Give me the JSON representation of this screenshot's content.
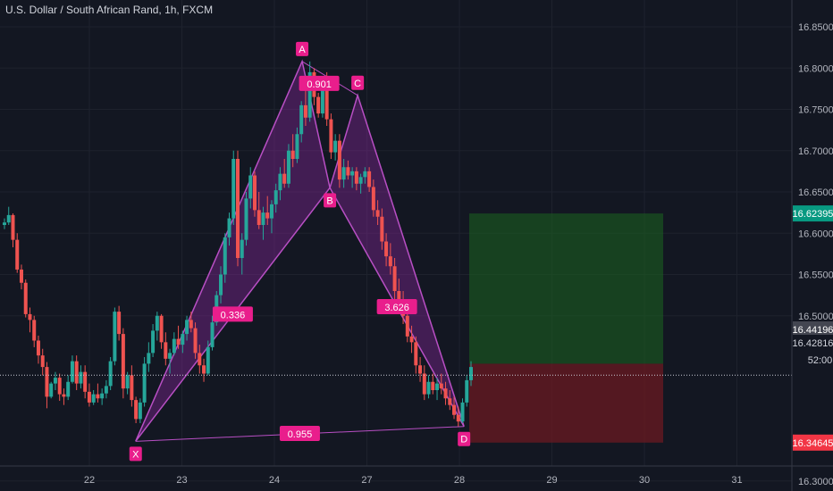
{
  "header": {
    "title": "U.S. Dollar / South African Rand, 1h, FXCM"
  },
  "chart_data": {
    "type": "candlestick",
    "symbol": "USDZAR",
    "interval": "1h",
    "source": "FXCM",
    "ylim": [
      16.26,
      16.87
    ],
    "y_ticks": [
      "16.85000",
      "16.80000",
      "16.75000",
      "16.70000",
      "16.65000",
      "16.60000",
      "16.55000",
      "16.50000",
      "16.30000"
    ],
    "x_ticks": [
      "22",
      "23",
      "24",
      "27",
      "28",
      "29",
      "30",
      "31"
    ],
    "price_labels": {
      "take_profit": "16.62395",
      "upper_current": "16.44196",
      "last_price": "16.42816",
      "countdown": "52:00",
      "stop_loss": "16.34645"
    },
    "colors": {
      "up": "#26a69a",
      "down": "#ef5350",
      "pattern_fill": "#9c27b0",
      "pattern_label": "#e91e8c",
      "profit_zone": "#1b5e20",
      "loss_zone": "#6b1a22",
      "take_profit_tag": "#089981",
      "stop_loss_tag": "#f23645"
    },
    "harmonic_pattern": {
      "points": [
        {
          "label": "X",
          "x": "22.5",
          "price": 16.348
        },
        {
          "label": "A",
          "x": "24.3",
          "price": 16.808
        },
        {
          "label": "B",
          "x": "24.6",
          "price": 16.655
        },
        {
          "label": "C",
          "x": "24.9",
          "price": 16.767
        },
        {
          "label": "D",
          "x": "28.05",
          "price": 16.366
        }
      ],
      "ratios": [
        "0.336",
        "0.901",
        "3.626",
        "0.955"
      ]
    },
    "candles": [
      [
        16.61,
        16.618,
        16.605,
        16.613
      ],
      [
        16.613,
        16.632,
        16.61,
        16.622
      ],
      [
        16.622,
        16.624,
        16.583,
        16.592
      ],
      [
        16.592,
        16.6,
        16.552,
        16.556
      ],
      [
        16.556,
        16.562,
        16.532,
        16.54
      ],
      [
        16.54,
        16.544,
        16.498,
        16.502
      ],
      [
        16.502,
        16.51,
        16.48,
        16.495
      ],
      [
        16.495,
        16.5,
        16.462,
        16.47
      ],
      [
        16.47,
        16.476,
        16.442,
        16.452
      ],
      [
        16.452,
        16.46,
        16.428,
        16.438
      ],
      [
        16.438,
        16.444,
        16.388,
        16.402
      ],
      [
        16.402,
        16.42,
        16.4,
        16.418
      ],
      [
        16.418,
        16.432,
        16.41,
        16.425
      ],
      [
        16.425,
        16.43,
        16.397,
        16.405
      ],
      [
        16.405,
        16.412,
        16.392,
        16.402
      ],
      [
        16.402,
        16.428,
        16.398,
        16.42
      ],
      [
        16.42,
        16.452,
        16.418,
        16.445
      ],
      [
        16.445,
        16.452,
        16.41,
        16.418
      ],
      [
        16.418,
        16.44,
        16.412,
        16.432
      ],
      [
        16.432,
        16.44,
        16.4,
        16.408
      ],
      [
        16.408,
        16.418,
        16.39,
        16.395
      ],
      [
        16.395,
        16.41,
        16.392,
        16.405
      ],
      [
        16.405,
        16.418,
        16.395,
        16.4
      ],
      [
        16.4,
        16.412,
        16.392,
        16.406
      ],
      [
        16.406,
        16.422,
        16.4,
        16.415
      ],
      [
        16.415,
        16.45,
        16.41,
        16.445
      ],
      [
        16.445,
        16.51,
        16.44,
        16.505
      ],
      [
        16.505,
        16.512,
        16.47,
        16.478
      ],
      [
        16.478,
        16.485,
        16.4,
        16.412
      ],
      [
        16.412,
        16.432,
        16.405,
        16.428
      ],
      [
        16.428,
        16.44,
        16.39,
        16.398
      ],
      [
        16.398,
        16.402,
        16.37,
        16.375
      ],
      [
        16.375,
        16.4,
        16.37,
        16.395
      ],
      [
        16.395,
        16.45,
        16.39,
        16.442
      ],
      [
        16.442,
        16.468,
        16.432,
        16.455
      ],
      [
        16.455,
        16.49,
        16.45,
        16.482
      ],
      [
        16.482,
        16.505,
        16.47,
        16.5
      ],
      [
        16.5,
        16.502,
        16.46,
        16.468
      ],
      [
        16.468,
        16.48,
        16.44,
        16.448
      ],
      [
        16.448,
        16.46,
        16.43,
        16.455
      ],
      [
        16.455,
        16.48,
        16.452,
        16.472
      ],
      [
        16.472,
        16.488,
        16.46,
        16.465
      ],
      [
        16.465,
        16.482,
        16.455,
        16.478
      ],
      [
        16.478,
        16.5,
        16.47,
        16.495
      ],
      [
        16.495,
        16.505,
        16.48,
        16.485
      ],
      [
        16.485,
        16.492,
        16.448,
        16.455
      ],
      [
        16.455,
        16.465,
        16.43,
        16.44
      ],
      [
        16.44,
        16.448,
        16.42,
        16.43
      ],
      [
        16.43,
        16.47,
        16.428,
        16.462
      ],
      [
        16.462,
        16.5,
        16.458,
        16.492
      ],
      [
        16.492,
        16.53,
        16.488,
        16.525
      ],
      [
        16.525,
        16.56,
        16.515,
        16.55
      ],
      [
        16.55,
        16.6,
        16.54,
        16.595
      ],
      [
        16.595,
        16.625,
        16.585,
        16.618
      ],
      [
        16.618,
        16.7,
        16.61,
        16.69
      ],
      [
        16.69,
        16.7,
        16.56,
        16.57
      ],
      [
        16.57,
        16.6,
        16.55,
        16.592
      ],
      [
        16.592,
        16.65,
        16.585,
        16.642
      ],
      [
        16.642,
        16.68,
        16.63,
        16.67
      ],
      [
        16.67,
        16.675,
        16.62,
        16.628
      ],
      [
        16.628,
        16.65,
        16.605,
        16.61
      ],
      [
        16.61,
        16.632,
        16.592,
        16.625
      ],
      [
        16.625,
        16.645,
        16.61,
        16.618
      ],
      [
        16.618,
        16.64,
        16.6,
        16.635
      ],
      [
        16.635,
        16.66,
        16.625,
        16.652
      ],
      [
        16.652,
        16.68,
        16.64,
        16.672
      ],
      [
        16.672,
        16.69,
        16.655,
        16.66
      ],
      [
        16.66,
        16.708,
        16.655,
        16.7
      ],
      [
        16.7,
        16.72,
        16.68,
        16.69
      ],
      [
        16.69,
        16.728,
        16.685,
        16.72
      ],
      [
        16.72,
        16.76,
        16.71,
        16.755
      ],
      [
        16.755,
        16.775,
        16.73,
        16.74
      ],
      [
        16.74,
        16.808,
        16.735,
        16.795
      ],
      [
        16.795,
        16.8,
        16.755,
        16.765
      ],
      [
        16.765,
        16.77,
        16.74,
        16.745
      ],
      [
        16.745,
        16.79,
        16.74,
        16.782
      ],
      [
        16.782,
        16.795,
        16.73,
        16.738
      ],
      [
        16.738,
        16.745,
        16.69,
        16.698
      ],
      [
        16.698,
        16.72,
        16.688,
        16.712
      ],
      [
        16.712,
        16.72,
        16.655,
        16.665
      ],
      [
        16.665,
        16.69,
        16.655,
        16.68
      ],
      [
        16.68,
        16.688,
        16.665,
        16.67
      ],
      [
        16.67,
        16.68,
        16.655,
        16.675
      ],
      [
        16.675,
        16.68,
        16.652,
        16.66
      ],
      [
        16.66,
        16.672,
        16.648,
        16.668
      ],
      [
        16.668,
        16.68,
        16.66,
        16.675
      ],
      [
        16.675,
        16.68,
        16.65,
        16.656
      ],
      [
        16.656,
        16.665,
        16.62,
        16.628
      ],
      [
        16.628,
        16.64,
        16.61,
        16.62
      ],
      [
        16.62,
        16.63,
        16.58,
        16.59
      ],
      [
        16.59,
        16.6,
        16.56,
        16.572
      ],
      [
        16.572,
        16.588,
        16.55,
        16.56
      ],
      [
        16.56,
        16.57,
        16.52,
        16.53
      ],
      [
        16.53,
        16.545,
        16.512,
        16.52
      ],
      [
        16.52,
        16.53,
        16.49,
        16.5
      ],
      [
        16.5,
        16.508,
        16.468,
        16.475
      ],
      [
        16.475,
        16.488,
        16.455,
        16.468
      ],
      [
        16.468,
        16.475,
        16.43,
        16.44
      ],
      [
        16.44,
        16.45,
        16.42,
        16.43
      ],
      [
        16.43,
        16.44,
        16.398,
        16.405
      ],
      [
        16.405,
        16.428,
        16.4,
        16.42
      ],
      [
        16.42,
        16.43,
        16.405,
        16.41
      ],
      [
        16.41,
        16.425,
        16.398,
        16.418
      ],
      [
        16.418,
        16.43,
        16.405,
        16.412
      ],
      [
        16.412,
        16.42,
        16.392,
        16.4
      ],
      [
        16.4,
        16.41,
        16.386,
        16.392
      ],
      [
        16.392,
        16.402,
        16.375,
        16.38
      ],
      [
        16.38,
        16.39,
        16.366,
        16.372
      ],
      [
        16.372,
        16.4,
        16.37,
        16.395
      ],
      [
        16.395,
        16.428,
        16.39,
        16.422
      ],
      [
        16.422,
        16.445,
        16.415,
        16.438
      ]
    ]
  }
}
